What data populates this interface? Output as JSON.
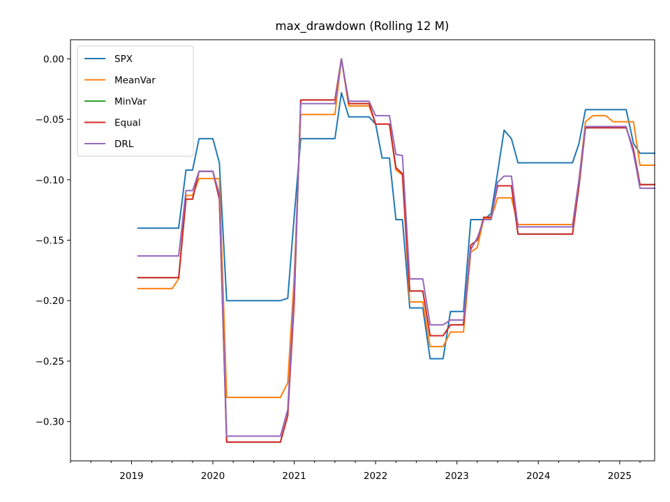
{
  "chart_data": {
    "type": "line",
    "title": "max_drawdown (Rolling 12 M)",
    "xlabel": "",
    "ylabel": "",
    "xlim": [
      2018.25,
      2025.43
    ],
    "ylim": [
      -0.3325,
      0.0158
    ],
    "x_ticks": [
      2019,
      2020,
      2021,
      2022,
      2023,
      2024,
      2025
    ],
    "x_tick_labels": [
      "2019",
      "2020",
      "2021",
      "2022",
      "2023",
      "2024",
      "2025"
    ],
    "y_ticks": [
      0.0,
      -0.05,
      -0.1,
      -0.15,
      -0.2,
      -0.25,
      -0.3
    ],
    "y_tick_labels": [
      "0.00",
      "−0.05",
      "−0.10",
      "−0.15",
      "−0.20",
      "−0.25",
      "−0.30"
    ],
    "grid": false,
    "legend_position": "top-left",
    "series": [
      {
        "name": "SPX",
        "color": "#1f77b4",
        "points": [
          [
            2019.08,
            -0.14
          ],
          [
            2019.58,
            -0.14
          ],
          [
            2019.67,
            -0.092
          ],
          [
            2019.75,
            -0.092
          ],
          [
            2019.83,
            -0.066
          ],
          [
            2020.0,
            -0.066
          ],
          [
            2020.08,
            -0.086
          ],
          [
            2020.17,
            -0.2
          ],
          [
            2020.83,
            -0.2
          ],
          [
            2020.92,
            -0.198
          ],
          [
            2021.0,
            -0.13
          ],
          [
            2021.08,
            -0.066
          ],
          [
            2021.5,
            -0.066
          ],
          [
            2021.58,
            -0.028
          ],
          [
            2021.67,
            -0.048
          ],
          [
            2021.92,
            -0.048
          ],
          [
            2022.0,
            -0.054
          ],
          [
            2022.08,
            -0.082
          ],
          [
            2022.17,
            -0.082
          ],
          [
            2022.25,
            -0.133
          ],
          [
            2022.33,
            -0.133
          ],
          [
            2022.42,
            -0.206
          ],
          [
            2022.58,
            -0.206
          ],
          [
            2022.67,
            -0.248
          ],
          [
            2022.83,
            -0.248
          ],
          [
            2022.92,
            -0.209
          ],
          [
            2023.08,
            -0.209
          ],
          [
            2023.17,
            -0.133
          ],
          [
            2023.33,
            -0.133
          ],
          [
            2023.42,
            -0.128
          ],
          [
            2023.5,
            -0.094
          ],
          [
            2023.58,
            -0.059
          ],
          [
            2023.67,
            -0.066
          ],
          [
            2023.75,
            -0.086
          ],
          [
            2024.42,
            -0.086
          ],
          [
            2024.5,
            -0.07
          ],
          [
            2024.58,
            -0.042
          ],
          [
            2025.08,
            -0.042
          ],
          [
            2025.17,
            -0.07
          ],
          [
            2025.25,
            -0.078
          ],
          [
            2025.43,
            -0.078
          ]
        ]
      },
      {
        "name": "MeanVar",
        "color": "#ff7f0e",
        "points": [
          [
            2019.08,
            -0.19
          ],
          [
            2019.5,
            -0.19
          ],
          [
            2019.58,
            -0.182
          ],
          [
            2019.67,
            -0.113
          ],
          [
            2019.75,
            -0.113
          ],
          [
            2019.83,
            -0.099
          ],
          [
            2020.08,
            -0.099
          ],
          [
            2020.17,
            -0.28
          ],
          [
            2020.83,
            -0.28
          ],
          [
            2020.92,
            -0.268
          ],
          [
            2021.0,
            -0.18
          ],
          [
            2021.08,
            -0.046
          ],
          [
            2021.5,
            -0.046
          ],
          [
            2021.58,
            0.0
          ],
          [
            2021.67,
            -0.039
          ],
          [
            2021.92,
            -0.039
          ],
          [
            2022.0,
            -0.054
          ],
          [
            2022.17,
            -0.054
          ],
          [
            2022.25,
            -0.092
          ],
          [
            2022.33,
            -0.096
          ],
          [
            2022.42,
            -0.201
          ],
          [
            2022.58,
            -0.201
          ],
          [
            2022.67,
            -0.238
          ],
          [
            2022.83,
            -0.238
          ],
          [
            2022.92,
            -0.226
          ],
          [
            2023.08,
            -0.226
          ],
          [
            2023.17,
            -0.16
          ],
          [
            2023.25,
            -0.156
          ],
          [
            2023.33,
            -0.132
          ],
          [
            2023.42,
            -0.132
          ],
          [
            2023.5,
            -0.115
          ],
          [
            2023.67,
            -0.115
          ],
          [
            2023.75,
            -0.137
          ],
          [
            2024.42,
            -0.137
          ],
          [
            2024.5,
            -0.1
          ],
          [
            2024.58,
            -0.052
          ],
          [
            2024.67,
            -0.047
          ],
          [
            2024.83,
            -0.047
          ],
          [
            2024.92,
            -0.052
          ],
          [
            2025.17,
            -0.052
          ],
          [
            2025.25,
            -0.088
          ],
          [
            2025.43,
            -0.088
          ]
        ]
      },
      {
        "name": "MinVar",
        "color": "#2ca02c",
        "points": [
          [
            2019.08,
            -0.181
          ],
          [
            2019.58,
            -0.181
          ],
          [
            2019.67,
            -0.116
          ],
          [
            2019.75,
            -0.116
          ],
          [
            2019.83,
            -0.093
          ],
          [
            2020.0,
            -0.093
          ],
          [
            2020.08,
            -0.116
          ],
          [
            2020.17,
            -0.317
          ],
          [
            2020.83,
            -0.317
          ],
          [
            2020.92,
            -0.295
          ],
          [
            2021.0,
            -0.2
          ],
          [
            2021.08,
            -0.034
          ],
          [
            2021.5,
            -0.034
          ],
          [
            2021.58,
            0.0
          ],
          [
            2021.67,
            -0.037
          ],
          [
            2021.92,
            -0.037
          ],
          [
            2022.0,
            -0.054
          ],
          [
            2022.17,
            -0.054
          ],
          [
            2022.25,
            -0.09
          ],
          [
            2022.33,
            -0.095
          ],
          [
            2022.42,
            -0.192
          ],
          [
            2022.58,
            -0.192
          ],
          [
            2022.67,
            -0.229
          ],
          [
            2022.83,
            -0.229
          ],
          [
            2022.92,
            -0.22
          ],
          [
            2023.08,
            -0.22
          ],
          [
            2023.17,
            -0.154
          ],
          [
            2023.25,
            -0.15
          ],
          [
            2023.33,
            -0.131
          ],
          [
            2023.42,
            -0.131
          ],
          [
            2023.5,
            -0.105
          ],
          [
            2023.67,
            -0.105
          ],
          [
            2023.75,
            -0.145
          ],
          [
            2024.42,
            -0.145
          ],
          [
            2024.5,
            -0.105
          ],
          [
            2024.58,
            -0.057
          ],
          [
            2025.08,
            -0.057
          ],
          [
            2025.17,
            -0.075
          ],
          [
            2025.25,
            -0.104
          ],
          [
            2025.43,
            -0.104
          ]
        ]
      },
      {
        "name": "Equal",
        "color": "#d62728",
        "points": [
          [
            2019.08,
            -0.181
          ],
          [
            2019.58,
            -0.181
          ],
          [
            2019.67,
            -0.116
          ],
          [
            2019.75,
            -0.116
          ],
          [
            2019.83,
            -0.093
          ],
          [
            2020.0,
            -0.093
          ],
          [
            2020.08,
            -0.116
          ],
          [
            2020.17,
            -0.317
          ],
          [
            2020.83,
            -0.317
          ],
          [
            2020.92,
            -0.295
          ],
          [
            2021.0,
            -0.2
          ],
          [
            2021.08,
            -0.034
          ],
          [
            2021.5,
            -0.034
          ],
          [
            2021.58,
            0.0
          ],
          [
            2021.67,
            -0.037
          ],
          [
            2021.92,
            -0.037
          ],
          [
            2022.0,
            -0.054
          ],
          [
            2022.17,
            -0.054
          ],
          [
            2022.25,
            -0.09
          ],
          [
            2022.33,
            -0.095
          ],
          [
            2022.42,
            -0.192
          ],
          [
            2022.58,
            -0.192
          ],
          [
            2022.67,
            -0.229
          ],
          [
            2022.83,
            -0.229
          ],
          [
            2022.92,
            -0.22
          ],
          [
            2023.08,
            -0.22
          ],
          [
            2023.17,
            -0.154
          ],
          [
            2023.25,
            -0.15
          ],
          [
            2023.33,
            -0.131
          ],
          [
            2023.42,
            -0.131
          ],
          [
            2023.5,
            -0.105
          ],
          [
            2023.67,
            -0.105
          ],
          [
            2023.75,
            -0.145
          ],
          [
            2024.42,
            -0.145
          ],
          [
            2024.5,
            -0.105
          ],
          [
            2024.58,
            -0.057
          ],
          [
            2025.08,
            -0.057
          ],
          [
            2025.17,
            -0.075
          ],
          [
            2025.25,
            -0.104
          ],
          [
            2025.43,
            -0.104
          ]
        ]
      },
      {
        "name": "DRL",
        "color": "#9467bd",
        "points": [
          [
            2019.08,
            -0.163
          ],
          [
            2019.58,
            -0.163
          ],
          [
            2019.67,
            -0.109
          ],
          [
            2019.75,
            -0.109
          ],
          [
            2019.83,
            -0.093
          ],
          [
            2020.0,
            -0.093
          ],
          [
            2020.08,
            -0.112
          ],
          [
            2020.17,
            -0.312
          ],
          [
            2020.83,
            -0.312
          ],
          [
            2020.92,
            -0.29
          ],
          [
            2021.0,
            -0.19
          ],
          [
            2021.08,
            -0.037
          ],
          [
            2021.5,
            -0.037
          ],
          [
            2021.58,
            0.0
          ],
          [
            2021.67,
            -0.035
          ],
          [
            2021.92,
            -0.035
          ],
          [
            2022.0,
            -0.047
          ],
          [
            2022.17,
            -0.047
          ],
          [
            2022.25,
            -0.079
          ],
          [
            2022.33,
            -0.08
          ],
          [
            2022.42,
            -0.182
          ],
          [
            2022.58,
            -0.182
          ],
          [
            2022.67,
            -0.22
          ],
          [
            2022.83,
            -0.22
          ],
          [
            2022.92,
            -0.216
          ],
          [
            2023.08,
            -0.216
          ],
          [
            2023.17,
            -0.158
          ],
          [
            2023.25,
            -0.148
          ],
          [
            2023.33,
            -0.133
          ],
          [
            2023.42,
            -0.133
          ],
          [
            2023.5,
            -0.102
          ],
          [
            2023.58,
            -0.097
          ],
          [
            2023.67,
            -0.097
          ],
          [
            2023.75,
            -0.139
          ],
          [
            2024.42,
            -0.139
          ],
          [
            2024.5,
            -0.1
          ],
          [
            2024.58,
            -0.056
          ],
          [
            2025.08,
            -0.056
          ],
          [
            2025.17,
            -0.078
          ],
          [
            2025.25,
            -0.107
          ],
          [
            2025.43,
            -0.107
          ]
        ]
      }
    ]
  }
}
